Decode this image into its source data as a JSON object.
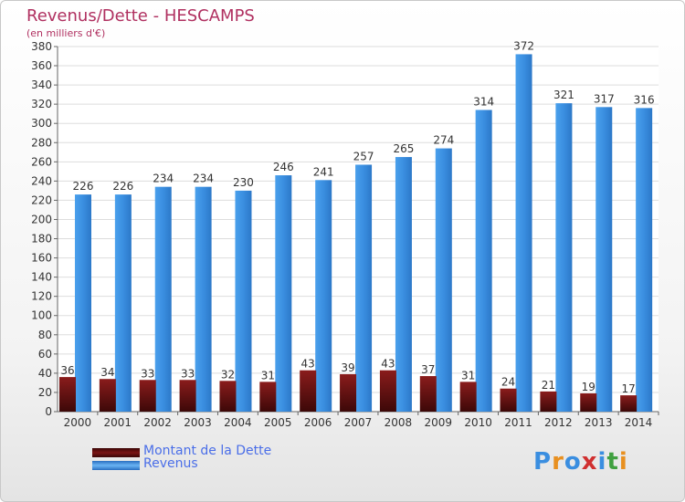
{
  "title": "Revenus/Dette - HESCAMPS",
  "subtitle": "(en milliers d'€)",
  "colors": {
    "dette": "#7a1414",
    "revenus": "#3a8ee0",
    "title": "#b03060",
    "legend_text": "#4a6ee8",
    "grid": "#dddddd"
  },
  "legend": {
    "dette_label": "Montant de la Dette",
    "revenus_label": "Revenus"
  },
  "logo": {
    "letters": [
      "P",
      "r",
      "o",
      "x",
      "i",
      "t",
      "i"
    ],
    "colors": [
      "#3a8ee0",
      "#e89020",
      "#3a8ee0",
      "#d03030",
      "#3a8ee0",
      "#40a040",
      "#e89020"
    ]
  },
  "chart_data": {
    "type": "bar",
    "categories": [
      "2000",
      "2001",
      "2002",
      "2003",
      "2004",
      "2005",
      "2006",
      "2007",
      "2008",
      "2009",
      "2010",
      "2011",
      "2012",
      "2013",
      "2014"
    ],
    "series": [
      {
        "name": "Montant de la Dette",
        "values": [
          36,
          34,
          33,
          33,
          32,
          31,
          43,
          39,
          43,
          37,
          31,
          24,
          21,
          19,
          17
        ]
      },
      {
        "name": "Revenus",
        "values": [
          226,
          226,
          234,
          234,
          230,
          246,
          241,
          257,
          265,
          274,
          314,
          372,
          321,
          317,
          316
        ]
      }
    ],
    "ylim": [
      0,
      380
    ],
    "ytick_step": 20,
    "grid": true,
    "legend_position": "bottom-left"
  }
}
